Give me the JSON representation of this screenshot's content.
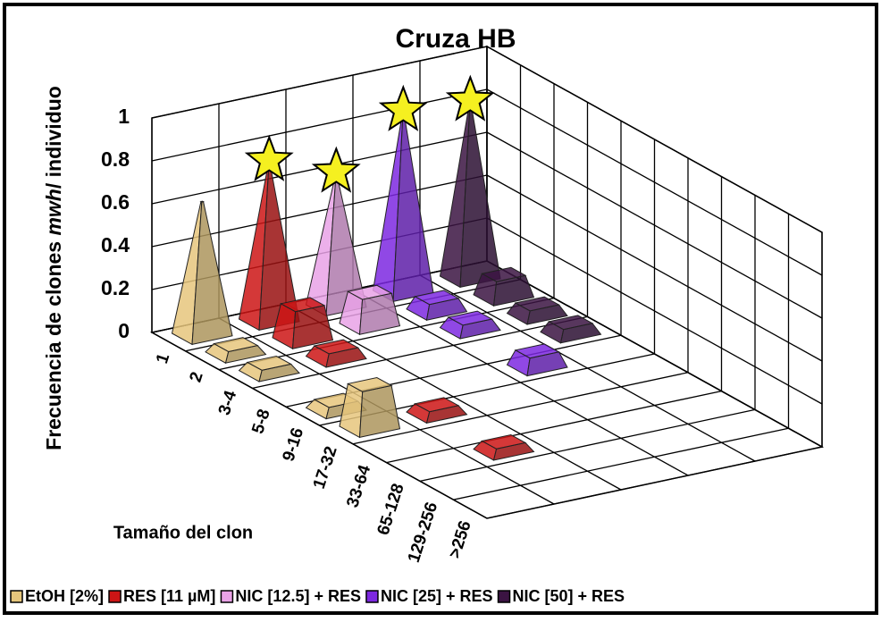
{
  "chart_data": {
    "type": "bar3d",
    "title": "Cruza HB",
    "y_label": [
      "Frecuencia de clones ",
      "mwh",
      "/ individuo"
    ],
    "x_label": "Tamaño del clon",
    "categories": [
      "1",
      "2",
      "3-4",
      "5-8",
      "9-16",
      "17-32",
      "33-64",
      "65-128",
      "129-256",
      ">256"
    ],
    "series": [
      {
        "name": "EtOH [2%]",
        "color": "#e6c67c",
        "significant": false,
        "values": [
          0.62,
          0.04,
          0.04,
          0,
          0.04,
          0.2,
          0,
          0,
          0,
          0
        ]
      },
      {
        "name": "RES [11 µM]",
        "color": "#cc1515",
        "significant": true,
        "values": [
          0.72,
          0.16,
          0.05,
          0,
          0,
          0.04,
          0,
          0.04,
          0,
          0
        ]
      },
      {
        "name": "NIC [12.5] + RES",
        "color": "#e9a2e6",
        "significant": true,
        "values": [
          0.6,
          0.15,
          0,
          0,
          0,
          0,
          0,
          0,
          0,
          0
        ]
      },
      {
        "name": "NIC [25] + RES",
        "color": "#7d28e0",
        "significant": true,
        "values": [
          0.82,
          0.06,
          0.05,
          0,
          0.07,
          0,
          0,
          0,
          0,
          0
        ]
      },
      {
        "name": "NIC [50] + RES",
        "color": "#3b1442",
        "significant": true,
        "values": [
          0.8,
          0.1,
          0.05,
          0.05,
          0,
          0,
          0,
          0,
          0,
          0
        ]
      }
    ],
    "ylim": [
      0,
      1
    ],
    "yticks": [
      0,
      0.2,
      0.4,
      0.6,
      0.8,
      1
    ],
    "grid": true
  }
}
